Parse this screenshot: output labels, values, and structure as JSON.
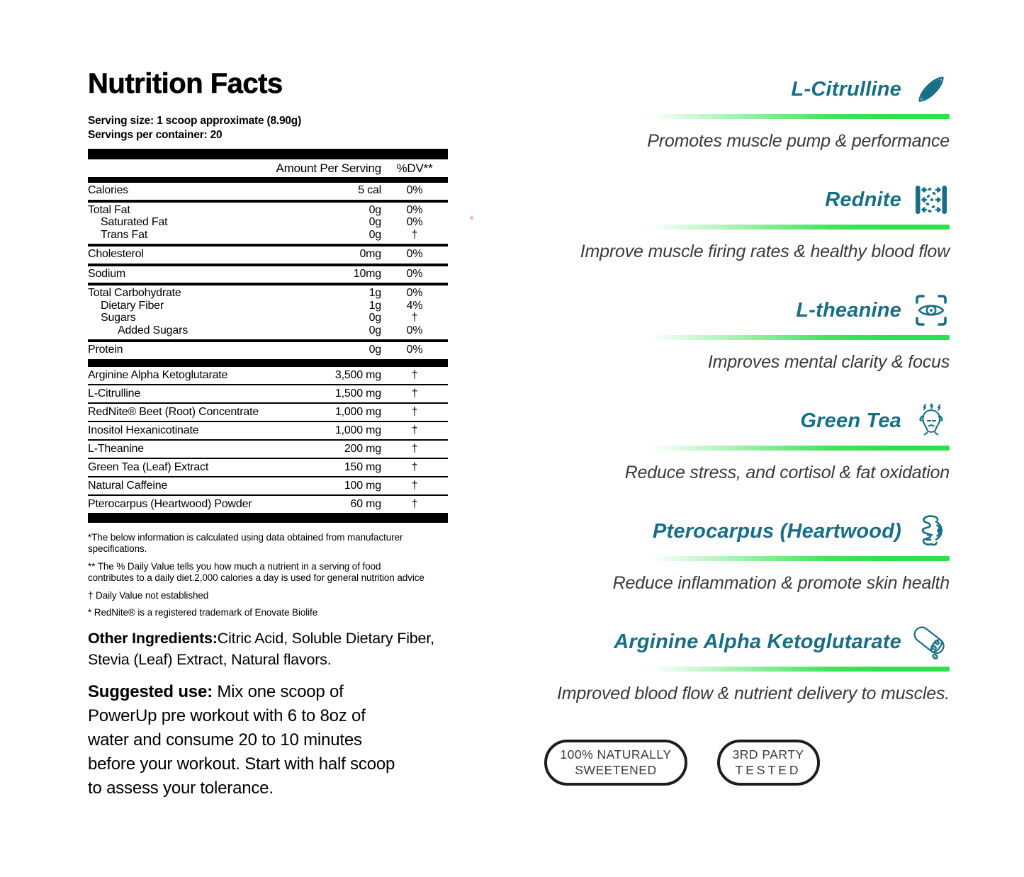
{
  "colors": {
    "teal": "#166f87",
    "green": "#2ee04a",
    "text_gray": "#3a3a3a"
  },
  "left": {
    "title": "Nutrition Facts",
    "serving_size": "Serving size: 1 scoop approximate (8.90g)",
    "servings_per_container": "Servings per container: 20",
    "table": {
      "header": {
        "amount": "Amount Per Serving",
        "dv": "%DV**"
      },
      "groups": [
        [
          {
            "label": "Calories",
            "indent": 0,
            "amount": "5 cal",
            "dv": "0%"
          }
        ],
        [
          {
            "label": "Total Fat",
            "indent": 0,
            "amount": "0g",
            "dv": "0%"
          },
          {
            "label": "Saturated Fat",
            "indent": 1,
            "amount": "0g",
            "dv": "0%"
          },
          {
            "label": "Trans Fat",
            "indent": 1,
            "amount": "0g",
            "dv": "†"
          }
        ],
        [
          {
            "label": "Cholesterol",
            "indent": 0,
            "amount": "0mg",
            "dv": "0%"
          }
        ],
        [
          {
            "label": "Sodium",
            "indent": 0,
            "amount": "10mg",
            "dv": "0%"
          }
        ],
        [
          {
            "label": "Total Carbohydrate",
            "indent": 0,
            "amount": "1g",
            "dv": "0%"
          },
          {
            "label": "Dietary Fiber",
            "indent": 1,
            "amount": "1g",
            "dv": "4%"
          },
          {
            "label": "Sugars",
            "indent": 1,
            "amount": "0g",
            "dv": "†"
          },
          {
            "label": "Added Sugars",
            "indent": 2,
            "amount": "0g",
            "dv": "0%"
          }
        ],
        [
          {
            "label": "Protein",
            "indent": 0,
            "amount": "0g",
            "dv": "0%"
          }
        ]
      ],
      "supplements": [
        {
          "label": "Arginine Alpha Ketoglutarate",
          "amount": "3,500 mg",
          "dv": "†"
        },
        {
          "label": "L-Citrulline",
          "amount": "1,500 mg",
          "dv": "†"
        },
        {
          "label": "RedNite® Beet (Root) Concentrate",
          "amount": "1,000 mg",
          "dv": "†"
        },
        {
          "label": "Inositol Hexanicotinate",
          "amount": "1,000 mg",
          "dv": "†"
        },
        {
          "label": "L-Theanine",
          "amount": "200 mg",
          "dv": "†"
        },
        {
          "label": "Green Tea (Leaf) Extract",
          "amount": "150 mg",
          "dv": "†"
        },
        {
          "label": "Natural Caffeine",
          "amount": "100 mg",
          "dv": "†"
        },
        {
          "label": "Pterocarpus (Heartwood) Powder",
          "amount": "60 mg",
          "dv": "†"
        }
      ]
    },
    "footnotes": [
      "*The below information is calculated using data obtained from manufacturer specifications.",
      "** The % Daily Value tells you how much a nutrient in a serving of food contributes to a daily diet.2,000 calories a day is used for general nutrition advice",
      "† Daily Value not established",
      "* RedNite® is a registered trademark of Enovate Biolife"
    ],
    "other_ingredients": {
      "label": "Other Ingredients:",
      "text": "Citric Acid, Soluble Dietary Fiber, Stevia (Leaf) Extract, Natural flavors."
    },
    "suggested_use": {
      "label": "Suggested use:",
      "text": "Mix one scoop of PowerUp pre workout with 6 to 8oz of water and consume 20 to 10 minutes before your workout. Start with half scoop to assess your tolerance."
    }
  },
  "right": {
    "sections": [
      {
        "name": "l-citrulline",
        "title": "L-Citrulline",
        "icon": "muscle-fiber-icon",
        "description": "Promotes muscle pump & performance"
      },
      {
        "name": "rednite",
        "title": "Rednite",
        "icon": "capillary-flow-icon",
        "description": "Improve muscle firing rates & healthy blood flow"
      },
      {
        "name": "l-theanine",
        "title": "L-theanine",
        "icon": "eye-focus-icon",
        "description": "Improves mental clarity & focus"
      },
      {
        "name": "green-tea",
        "title": "Green Tea",
        "icon": "stressed-head-icon",
        "description": "Reduce stress, and cortisol & fat oxidation"
      },
      {
        "name": "pterocarpus",
        "title": "Pterocarpus (Heartwood)",
        "icon": "gut-icon",
        "description": "Reduce inflammation & promote skin health"
      },
      {
        "name": "arginine",
        "title": "Arginine Alpha Ketoglutarate",
        "icon": "blood-vessel-icon",
        "description": "Improved blood flow & nutrient delivery to muscles."
      }
    ],
    "badges": [
      {
        "line1": "100% NATURALLY",
        "line2": "SWEETENED"
      },
      {
        "line1": "3RD PARTY",
        "line2": "TESTED"
      }
    ]
  }
}
